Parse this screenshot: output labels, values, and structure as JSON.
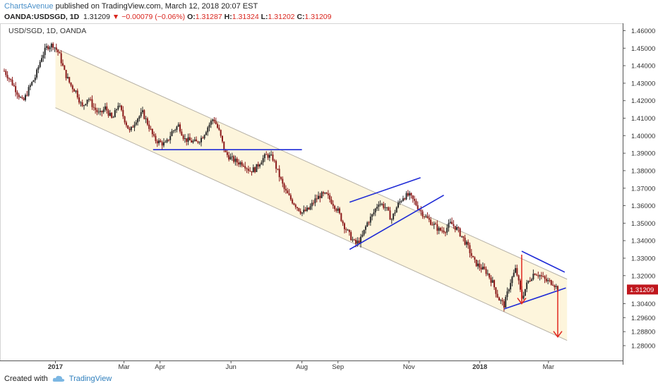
{
  "header": {
    "author": "ChartsAvenue",
    "published_text": "published on TradingView.com, March 12, 2018 20:07 EST",
    "symbol": "OANDA:USDSGD, 1D",
    "last": "1.31209",
    "change": "−0.00079 (−0.06%)",
    "o_label": "O:",
    "o_value": "1.31287",
    "h_label": "H:",
    "h_value": "1.31324",
    "l_label": "L:",
    "l_value": "1.31202",
    "c_label": "C:",
    "c_value": "1.31209"
  },
  "chart_label": "USD/SGD, 1D, OANDA",
  "footer": {
    "created_with": "Created with",
    "brand": "TradingView"
  },
  "colors": {
    "bull": "#2b2b2b",
    "bear": "#8b1a1a",
    "channel_fill": "#fdf5dc",
    "channel_line": "#b5b0a5",
    "trendline": "#1f2bd6",
    "arrow": "#e0271f",
    "price_tag": "#c0171d"
  },
  "chart_data": {
    "type": "candlestick",
    "title": "USD/SGD, 1D, OANDA",
    "y_ticks": [
      "1.46000",
      "1.45000",
      "1.44000",
      "1.43000",
      "1.42000",
      "1.41000",
      "1.40000",
      "1.39000",
      "1.38000",
      "1.37000",
      "1.36000",
      "1.35000",
      "1.34000",
      "1.33000",
      "1.32000",
      "1.31209",
      "1.30400",
      "1.29600",
      "1.28800",
      "1.28000"
    ],
    "y_tick_values": [
      1.46,
      1.45,
      1.44,
      1.43,
      1.42,
      1.41,
      1.4,
      1.39,
      1.38,
      1.37,
      1.36,
      1.35,
      1.34,
      1.33,
      1.32,
      1.31209,
      1.304,
      1.296,
      1.288,
      1.28
    ],
    "x_ticks": [
      "2017",
      "Mar",
      "Apr",
      "Jun",
      "Aug",
      "Sep",
      "Nov",
      "2018",
      "Mar"
    ],
    "x_tick_days": [
      0,
      59,
      90,
      151,
      212,
      243,
      304,
      365,
      424
    ],
    "last_price": "1.31209",
    "price_path": [
      [
        -44,
        1.437
      ],
      [
        -38,
        1.431
      ],
      [
        -33,
        1.425
      ],
      [
        -28,
        1.419
      ],
      [
        -22,
        1.428
      ],
      [
        -17,
        1.434
      ],
      [
        -12,
        1.445
      ],
      [
        -7,
        1.451
      ],
      [
        -2,
        1.452
      ],
      [
        3,
        1.447
      ],
      [
        8,
        1.436
      ],
      [
        13,
        1.429
      ],
      [
        18,
        1.425
      ],
      [
        23,
        1.416
      ],
      [
        28,
        1.422
      ],
      [
        33,
        1.416
      ],
      [
        38,
        1.412
      ],
      [
        43,
        1.416
      ],
      [
        49,
        1.409
      ],
      [
        54,
        1.418
      ],
      [
        59,
        1.41
      ],
      [
        64,
        1.402
      ],
      [
        69,
        1.409
      ],
      [
        75,
        1.413
      ],
      [
        80,
        1.406
      ],
      [
        85,
        1.398
      ],
      [
        90,
        1.396
      ],
      [
        95,
        1.395
      ],
      [
        100,
        1.402
      ],
      [
        106,
        1.406
      ],
      [
        111,
        1.398
      ],
      [
        116,
        1.397
      ],
      [
        121,
        1.396
      ],
      [
        126,
        1.399
      ],
      [
        131,
        1.405
      ],
      [
        136,
        1.41
      ],
      [
        141,
        1.402
      ],
      [
        146,
        1.39
      ],
      [
        151,
        1.387
      ],
      [
        156,
        1.385
      ],
      [
        162,
        1.384
      ],
      [
        167,
        1.38
      ],
      [
        172,
        1.381
      ],
      [
        177,
        1.386
      ],
      [
        182,
        1.389
      ],
      [
        187,
        1.387
      ],
      [
        192,
        1.378
      ],
      [
        197,
        1.369
      ],
      [
        202,
        1.364
      ],
      [
        207,
        1.36
      ],
      [
        212,
        1.356
      ],
      [
        218,
        1.358
      ],
      [
        223,
        1.363
      ],
      [
        228,
        1.366
      ],
      [
        233,
        1.366
      ],
      [
        238,
        1.362
      ],
      [
        243,
        1.357
      ],
      [
        248,
        1.349
      ],
      [
        253,
        1.343
      ],
      [
        258,
        1.338
      ],
      [
        263,
        1.341
      ],
      [
        268,
        1.35
      ],
      [
        273,
        1.355
      ],
      [
        278,
        1.362
      ],
      [
        284,
        1.359
      ],
      [
        289,
        1.352
      ],
      [
        294,
        1.36
      ],
      [
        299,
        1.365
      ],
      [
        304,
        1.366
      ],
      [
        309,
        1.362
      ],
      [
        314,
        1.357
      ],
      [
        319,
        1.353
      ],
      [
        324,
        1.35
      ],
      [
        330,
        1.346
      ],
      [
        335,
        1.346
      ],
      [
        340,
        1.35
      ],
      [
        345,
        1.347
      ],
      [
        350,
        1.342
      ],
      [
        355,
        1.336
      ],
      [
        360,
        1.328
      ],
      [
        365,
        1.325
      ],
      [
        371,
        1.322
      ],
      [
        376,
        1.316
      ],
      [
        381,
        1.307
      ],
      [
        386,
        1.303
      ],
      [
        391,
        1.316
      ],
      [
        396,
        1.324
      ],
      [
        401,
        1.307
      ],
      [
        406,
        1.316
      ],
      [
        412,
        1.322
      ],
      [
        417,
        1.32
      ],
      [
        422,
        1.317
      ],
      [
        428,
        1.316
      ],
      [
        432,
        1.3121
      ]
    ],
    "channel": {
      "upper": [
        [
          0,
          1.45
        ],
        [
          440,
          1.318
        ]
      ],
      "lower": [
        [
          0,
          1.416
        ],
        [
          440,
          1.283
        ]
      ],
      "fill": "#fdf5dc"
    },
    "trendlines": [
      {
        "name": "support-line",
        "points": [
          [
            84,
            1.392
          ],
          [
            212,
            1.392
          ]
        ]
      },
      {
        "name": "wedge-upper",
        "points": [
          [
            253,
            1.362
          ],
          [
            314,
            1.376
          ]
        ]
      },
      {
        "name": "wedge-lower",
        "points": [
          [
            253,
            1.335
          ],
          [
            334,
            1.366
          ]
        ]
      },
      {
        "name": "triangle-upper",
        "points": [
          [
            401,
            1.334
          ],
          [
            438,
            1.322
          ]
        ]
      },
      {
        "name": "triangle-lower",
        "points": [
          [
            386,
            1.301
          ],
          [
            439,
            1.313
          ]
        ]
      }
    ],
    "arrows": [
      {
        "name": "short-arrow",
        "from": [
          401,
          1.332
        ],
        "to": [
          401,
          1.304
        ]
      },
      {
        "name": "target-arrow",
        "from": [
          432,
          1.312
        ],
        "to": [
          432,
          1.285
        ]
      }
    ],
    "x_range": [
      -50,
      450
    ],
    "y_range": [
      1.277,
      1.462
    ]
  }
}
